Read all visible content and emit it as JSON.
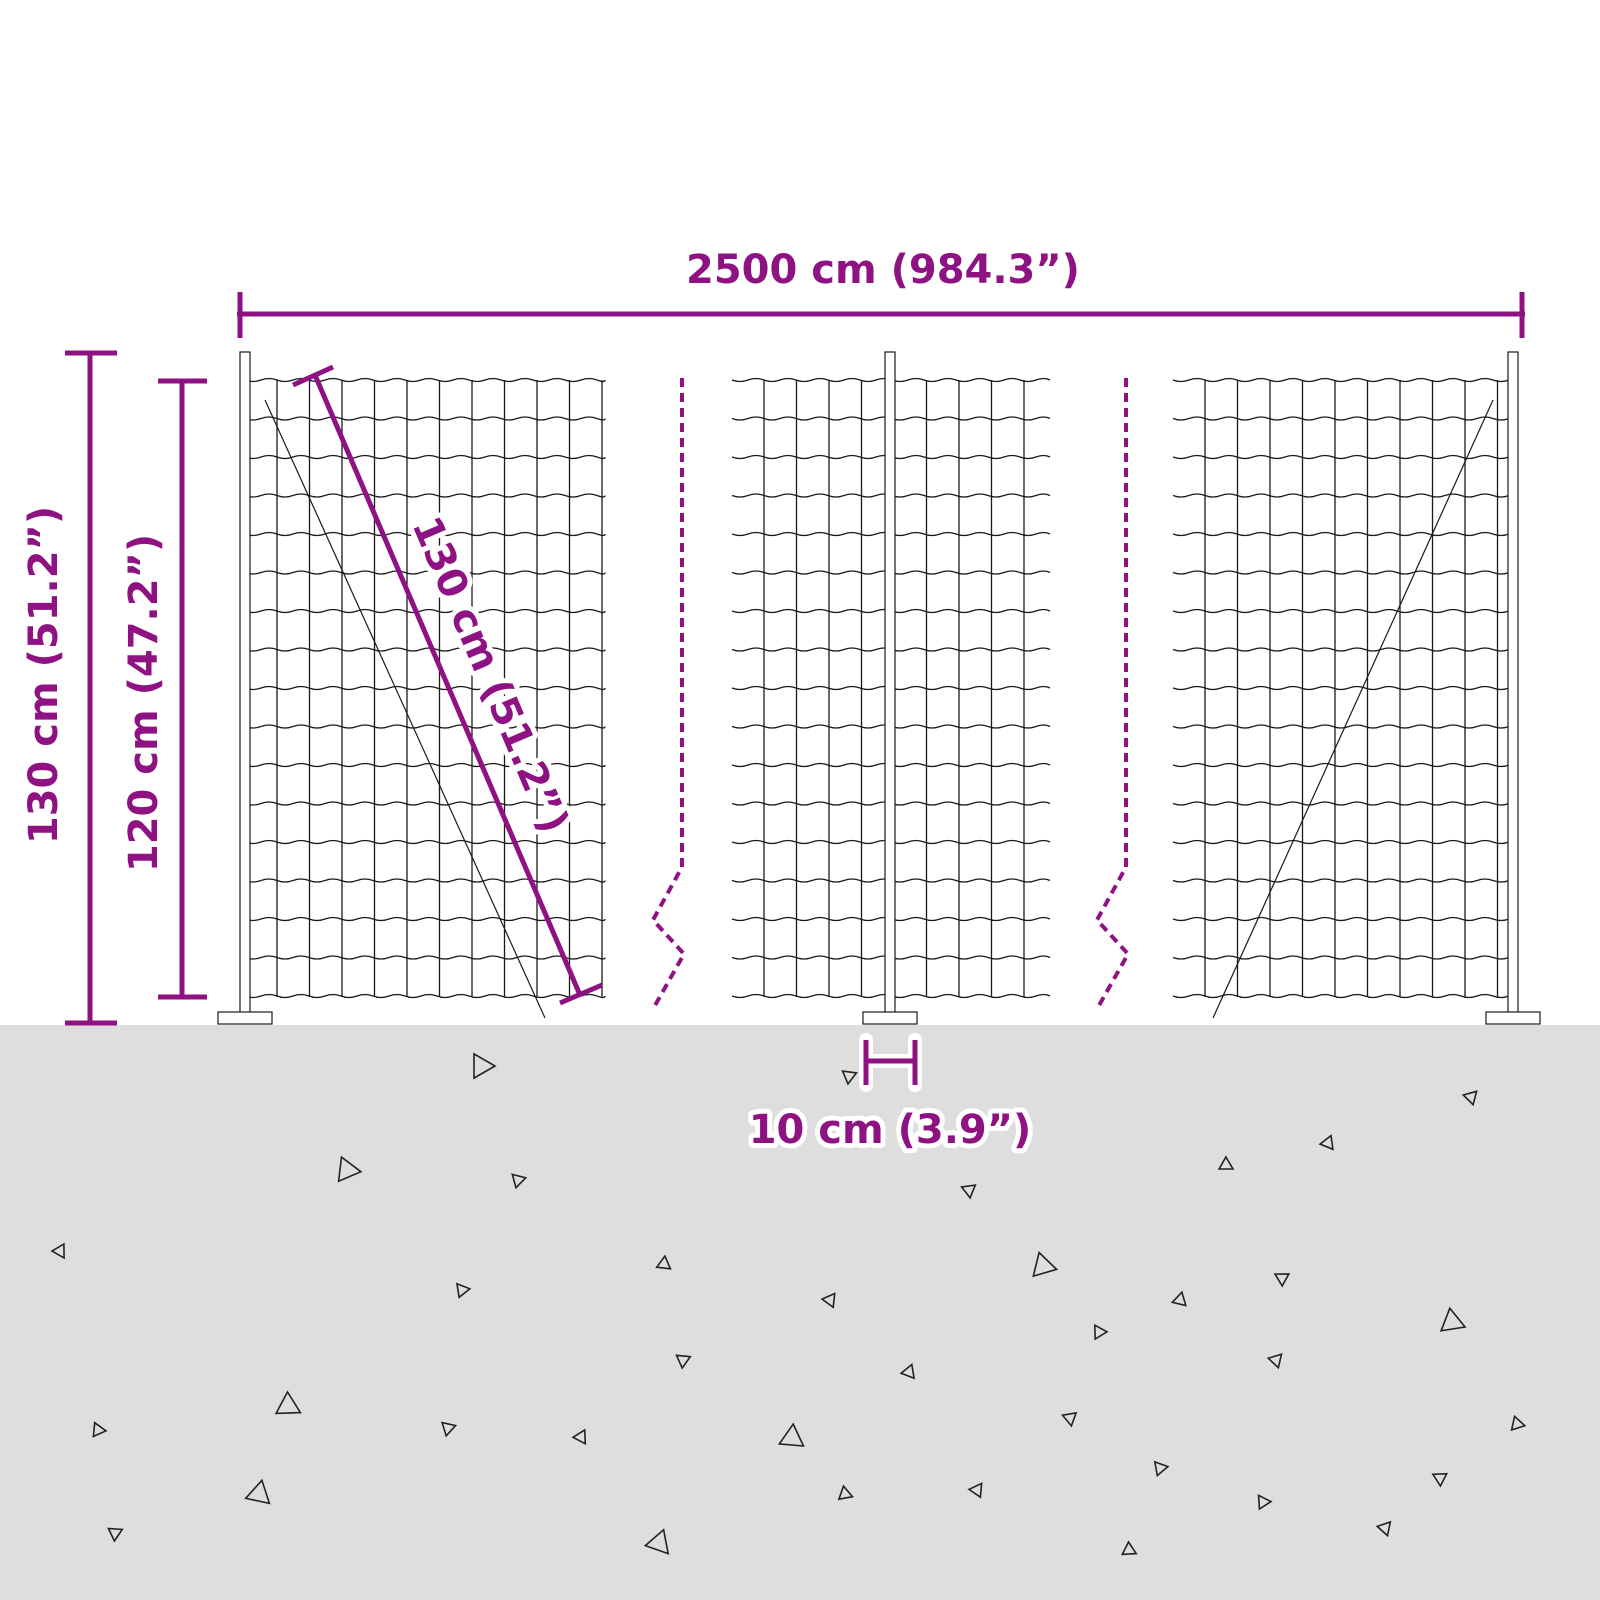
{
  "colors": {
    "dimension": "#8E1282",
    "ground": "#DEDEDE",
    "wire": "#1a1a1a"
  },
  "dimensions": {
    "total_length": "2500 cm (984.3”)",
    "post_height": "130 cm (51.2”)",
    "fence_height": "120 cm (47.2”)",
    "brace_length": "130 cm (51.2”)",
    "post_width": "10 cm (3.9”)"
  }
}
